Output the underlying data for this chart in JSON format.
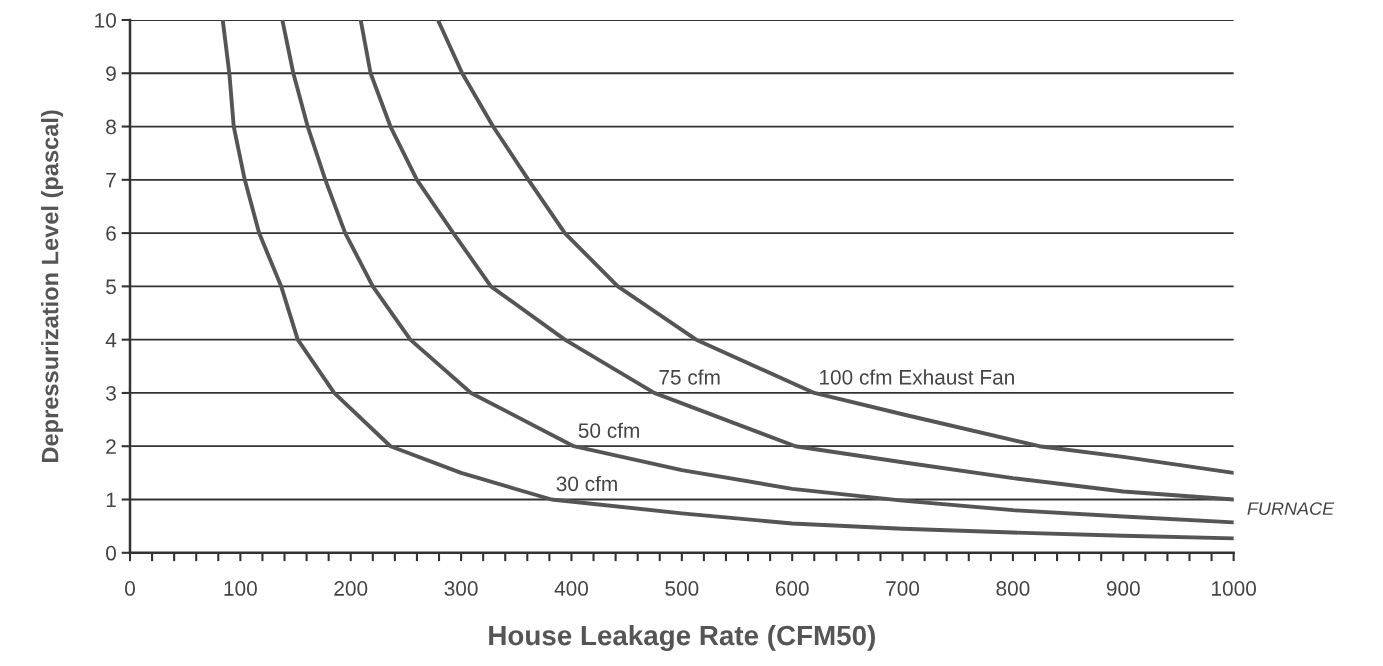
{
  "chart_data": {
    "type": "line",
    "xlabel": "House Leakage Rate (CFM50)",
    "ylabel": "Depressurization Level (pascal)",
    "xlim": [
      0,
      1000
    ],
    "ylim": [
      0,
      10
    ],
    "xticks": [
      0,
      {
        "value": 20,
        "label": null
      },
      {
        "value": 40,
        "label": null
      },
      {
        "value": 60,
        "label": null
      },
      {
        "value": 80,
        "label": null
      },
      100,
      {
        "value": 120,
        "label": null
      },
      {
        "value": 140,
        "label": null
      },
      {
        "value": 160,
        "label": null
      },
      {
        "value": 180,
        "label": null
      },
      200,
      {
        "value": 220,
        "label": null
      },
      {
        "value": 240,
        "label": null
      },
      {
        "value": 260,
        "label": null
      },
      {
        "value": 280,
        "label": null
      },
      300,
      {
        "value": 320,
        "label": null
      },
      {
        "value": 340,
        "label": null
      },
      {
        "value": 360,
        "label": null
      },
      {
        "value": 380,
        "label": null
      },
      400,
      {
        "value": 420,
        "label": null
      },
      {
        "value": 440,
        "label": null
      },
      {
        "value": 460,
        "label": null
      },
      {
        "value": 480,
        "label": null
      },
      500,
      {
        "value": 520,
        "label": null
      },
      {
        "value": 540,
        "label": null
      },
      {
        "value": 560,
        "label": null
      },
      {
        "value": 580,
        "label": null
      },
      600,
      {
        "value": 620,
        "label": null
      },
      {
        "value": 640,
        "label": null
      },
      {
        "value": 660,
        "label": null
      },
      {
        "value": 680,
        "label": null
      },
      700,
      {
        "value": 720,
        "label": null
      },
      {
        "value": 740,
        "label": null
      },
      {
        "value": 760,
        "label": null
      },
      {
        "value": 780,
        "label": null
      },
      800,
      {
        "value": 820,
        "label": null
      },
      {
        "value": 840,
        "label": null
      },
      {
        "value": 860,
        "label": null
      },
      {
        "value": 880,
        "label": null
      },
      900,
      {
        "value": 920,
        "label": null
      },
      {
        "value": 940,
        "label": null
      },
      {
        "value": 960,
        "label": null
      },
      {
        "value": 980,
        "label": null
      },
      1000
    ],
    "yticks": [
      0,
      1,
      2,
      3,
      4,
      5,
      6,
      7,
      8,
      9,
      10
    ],
    "grid": "y",
    "legend": false,
    "marker": "none",
    "line_style": "solid",
    "series": [
      {
        "name": "30 cfm",
        "color": "#555555",
        "x": [
          84,
          90,
          94,
          104,
          117,
          137,
          152,
          185,
          236,
          300,
          382,
          500,
          600,
          700,
          800,
          900,
          1000
        ],
        "values": [
          10,
          9,
          8,
          7,
          6,
          5,
          4,
          3,
          2,
          1.5,
          1,
          0.74,
          0.55,
          0.45,
          0.38,
          0.32,
          0.27
        ]
      },
      {
        "name": "50 cfm",
        "color": "#555555",
        "x": [
          138,
          148,
          161,
          177,
          195,
          220,
          254,
          309,
          402,
          500,
          600,
          700,
          800,
          900,
          1000
        ],
        "values": [
          10,
          9,
          8,
          7,
          6,
          5,
          4,
          3,
          2,
          1.55,
          1.2,
          0.98,
          0.8,
          0.68,
          0.57
        ]
      },
      {
        "name": "75 cfm",
        "color": "#555555",
        "x": [
          209,
          218,
          236,
          260,
          293,
          327,
          394,
          475,
          603,
          700,
          800,
          900,
          1000
        ],
        "values": [
          10,
          9,
          8,
          7,
          6,
          5,
          4,
          3,
          2,
          1.7,
          1.4,
          1.15,
          1.0
        ]
      },
      {
        "name": "100 cfm Exhaust Fan",
        "color": "#555555",
        "x": [
          279,
          301,
          329,
          361,
          394,
          442,
          513,
          620,
          700,
          824,
          900,
          1000
        ],
        "values": [
          10,
          9,
          8,
          7,
          6,
          5,
          4,
          3,
          2.6,
          2,
          1.8,
          1.5
        ]
      }
    ],
    "annotations": [
      "FURNACE"
    ]
  }
}
